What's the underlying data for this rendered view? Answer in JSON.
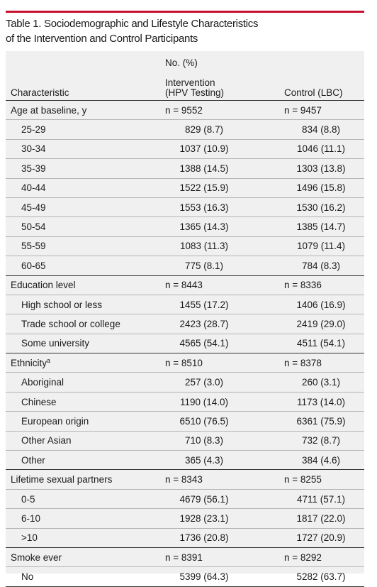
{
  "table_title": {
    "line1": "Table 1. Sociodemographic and Lifestyle Characteristics",
    "line2": "of the Intervention and Control Participants"
  },
  "header": {
    "no_pct": "No. (%)",
    "characteristic": "Characteristic",
    "intervention_line1": "Intervention",
    "intervention_line2": "(HPV Testing)",
    "control": "Control (LBC)"
  },
  "sections": {
    "age": {
      "label": "Age at baseline, y",
      "n_intervention": "n = 9552",
      "n_control": "n = 9457",
      "rows": [
        {
          "label": "25-29",
          "intervention": "829 (8.7)",
          "control": "834 (8.8)"
        },
        {
          "label": "30-34",
          "intervention": "1037 (10.9)",
          "control": "1046 (11.1)"
        },
        {
          "label": "35-39",
          "intervention": "1388 (14.5)",
          "control": "1303 (13.8)"
        },
        {
          "label": "40-44",
          "intervention": "1522 (15.9)",
          "control": "1496 (15.8)"
        },
        {
          "label": "45-49",
          "intervention": "1553 (16.3)",
          "control": "1530 (16.2)"
        },
        {
          "label": "50-54",
          "intervention": "1365 (14.3)",
          "control": "1385 (14.7)"
        },
        {
          "label": "55-59",
          "intervention": "1083 (11.3)",
          "control": "1079 (11.4)"
        },
        {
          "label": "60-65",
          "intervention": "775 (8.1)",
          "control": "784 (8.3)"
        }
      ]
    },
    "education": {
      "label": "Education level",
      "n_intervention": "n = 8443",
      "n_control": "n = 8336",
      "rows": [
        {
          "label": "High school or less",
          "intervention": "1455 (17.2)",
          "control": "1406 (16.9)"
        },
        {
          "label": "Trade school or college",
          "intervention": "2423 (28.7)",
          "control": "2419 (29.0)"
        },
        {
          "label": "Some university",
          "intervention": "4565 (54.1)",
          "control": "4511 (54.1)"
        }
      ]
    },
    "ethnicity": {
      "label": "Ethnicity",
      "label_sup": "a",
      "n_intervention": "n = 8510",
      "n_control": "n = 8378",
      "rows": [
        {
          "label": "Aboriginal",
          "intervention": "257 (3.0)",
          "control": "260 (3.1)"
        },
        {
          "label": "Chinese",
          "intervention": "1190 (14.0)",
          "control": "1173 (14.0)"
        },
        {
          "label": "European origin",
          "intervention": "6510 (76.5)",
          "control": "6361 (75.9)"
        },
        {
          "label": "Other Asian",
          "intervention": "710 (8.3)",
          "control": "732 (8.7)"
        },
        {
          "label": "Other",
          "intervention": "365 (4.3)",
          "control": "384 (4.6)"
        }
      ]
    },
    "partners": {
      "label": "Lifetime sexual partners",
      "n_intervention": "n = 8343",
      "n_control": "n = 8255",
      "rows": [
        {
          "label": "0-5",
          "intervention": "4679 (56.1)",
          "control": "4711 (57.1)"
        },
        {
          "label": "6-10",
          "intervention": "1928 (23.1)",
          "control": "1817 (22.0)"
        },
        {
          "label": ">10",
          "intervention": "1736 (20.8)",
          "control": "1727 (20.9)"
        }
      ]
    },
    "smoke": {
      "label": "Smoke ever",
      "n_intervention": "n = 8391",
      "n_control": "n = 8292",
      "rows": [
        {
          "label": "No",
          "intervention": "5399 (64.3)",
          "control": "5282 (63.7)"
        }
      ]
    }
  },
  "colors": {
    "accent_rule": "#c8102e",
    "table_background": "#f0f0f1"
  }
}
